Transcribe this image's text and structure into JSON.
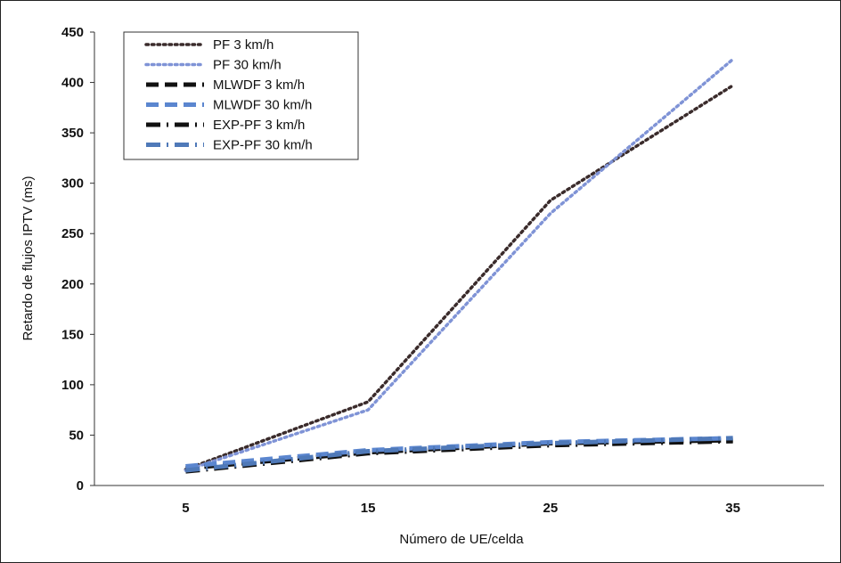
{
  "chart_data": {
    "type": "line",
    "xlabel": "Número de UE/celda",
    "ylabel": "Retardo de flujos IPTV (ms)",
    "categories": [
      "5",
      "15",
      "25",
      "35"
    ],
    "ylim": [
      0,
      450
    ],
    "yticks": [
      0,
      50,
      100,
      150,
      200,
      250,
      300,
      350,
      400,
      450
    ],
    "grid": false,
    "legend_position": "top-left",
    "series": [
      {
        "name": "PF 3 km/h",
        "values": [
          16,
          83,
          283,
          397
        ],
        "color": "#3a2b2b",
        "style": "dotted"
      },
      {
        "name": "PF 30 km/h",
        "values": [
          15,
          75,
          270,
          423
        ],
        "color": "#7f93d6",
        "style": "dotted"
      },
      {
        "name": "MLWDF 3 km/h",
        "values": [
          17,
          33,
          42,
          45
        ],
        "color": "#111111",
        "style": "dashed"
      },
      {
        "name": "MLWDF 30 km/h",
        "values": [
          19,
          35,
          43,
          47
        ],
        "color": "#5b86cf",
        "style": "dashed"
      },
      {
        "name": "EXP-PF 3 km/h",
        "values": [
          14,
          32,
          40,
          44
        ],
        "color": "#111111",
        "style": "dashdot"
      },
      {
        "name": "EXP-PF 30 km/h",
        "values": [
          15,
          34,
          42,
          47
        ],
        "color": "#4f79b8",
        "style": "dashdot"
      }
    ]
  }
}
